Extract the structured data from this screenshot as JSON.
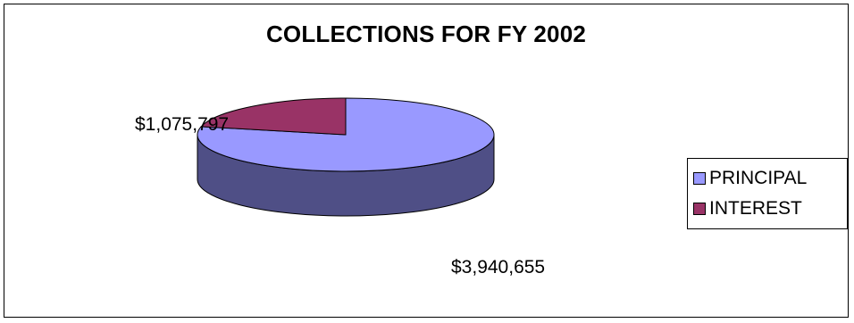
{
  "chart_data": {
    "type": "pie",
    "title": "COLLECTIONS FOR FY 2002",
    "slices": [
      {
        "name": "PRINCIPAL",
        "value": 3940655,
        "label": "$3,940,655",
        "color": "#9999ff",
        "side_color": "#4f4f86"
      },
      {
        "name": "INTEREST",
        "value": 1075797,
        "label": "$1,075,797",
        "color": "#993366",
        "side_color": "#5a1f3c"
      }
    ],
    "three_d": true,
    "legend_position": "right"
  }
}
